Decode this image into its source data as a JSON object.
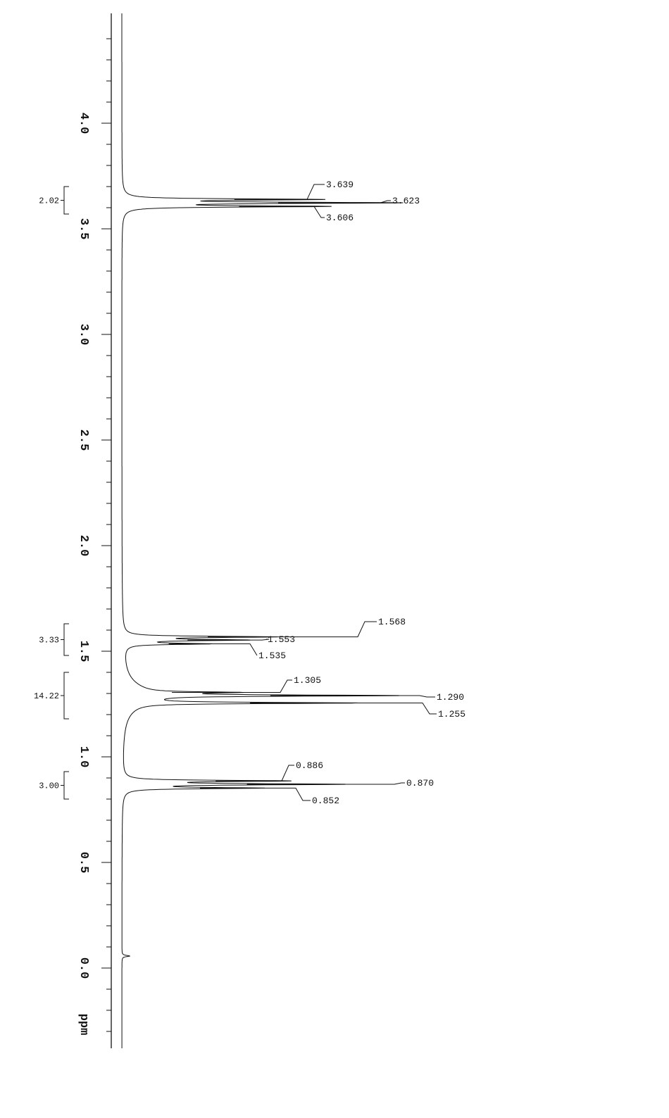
{
  "chart_data": {
    "type": "line",
    "title": "",
    "xlabel": "ppm",
    "ylabel": "",
    "orientation": "ppm axis vertical, decreasing downward",
    "xlim": [
      4.52,
      -0.38
    ],
    "x_ticks": [
      "4.0",
      "3.5",
      "3.0",
      "2.5",
      "2.0",
      "1.5",
      "1.0",
      "0.5",
      "0.0"
    ],
    "x_tick_values": [
      4.0,
      3.5,
      3.0,
      2.5,
      2.0,
      1.5,
      1.0,
      0.5,
      0.0
    ],
    "minor_tick_step": 0.1,
    "grid": false,
    "peaks": [
      {
        "ppm": 3.639,
        "label": "3.639",
        "intensity": 0.72
      },
      {
        "ppm": 3.623,
        "label": "3.623",
        "intensity": 1.0
      },
      {
        "ppm": 3.606,
        "label": "3.606",
        "intensity": 0.75
      },
      {
        "ppm": 1.568,
        "label": "1.568",
        "intensity": 0.55
      },
      {
        "ppm": 1.553,
        "label": "1.553",
        "intensity": 0.42
      },
      {
        "ppm": 1.535,
        "label": "1.535",
        "intensity": 0.3
      },
      {
        "ppm": 1.305,
        "label": "1.305",
        "intensity": 0.32
      },
      {
        "ppm": 1.29,
        "label": "1.290",
        "intensity": 0.95
      },
      {
        "ppm": 1.255,
        "label": "1.255",
        "intensity": 0.82
      },
      {
        "ppm": 0.886,
        "label": "0.886",
        "intensity": 0.6
      },
      {
        "ppm": 0.87,
        "label": "0.870",
        "intensity": 0.8
      },
      {
        "ppm": 0.852,
        "label": "0.852",
        "intensity": 0.5
      },
      {
        "ppm": 0.057,
        "label": "",
        "intensity": 0.03
      }
    ],
    "integrals": [
      {
        "label": "2.02",
        "from": 3.7,
        "to": 3.57
      },
      {
        "label": "3.33",
        "from": 1.63,
        "to": 1.48
      },
      {
        "label": "14.22",
        "from": 1.4,
        "to": 1.18
      },
      {
        "label": "3.00",
        "from": 0.93,
        "to": 0.8
      }
    ]
  }
}
